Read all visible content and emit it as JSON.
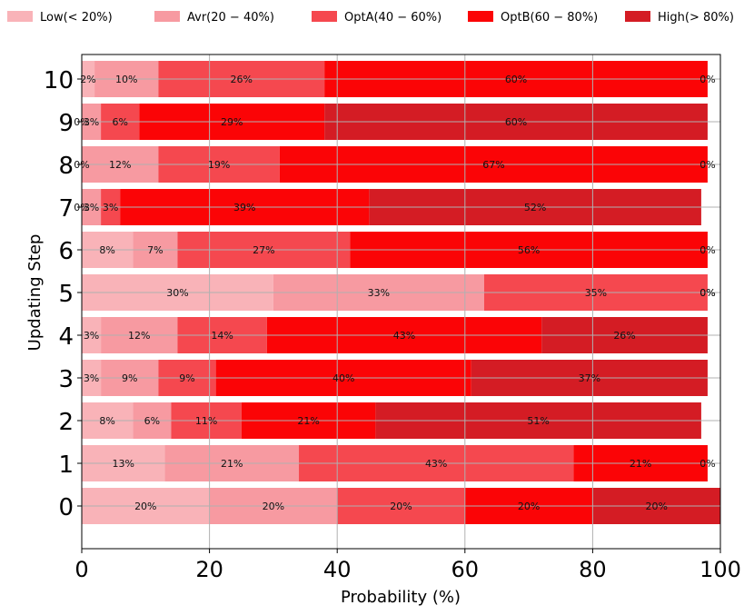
{
  "chart_data": {
    "type": "bar",
    "orientation": "horizontal",
    "stacked": true,
    "title": "",
    "xlabel": "Probability (%)",
    "ylabel": "Updating Step",
    "xlim": [
      0,
      100
    ],
    "xticks": [
      "0",
      "20",
      "40",
      "60",
      "80",
      "100"
    ],
    "grid": true,
    "legend_position": "top",
    "categories": [
      "0",
      "1",
      "2",
      "3",
      "4",
      "5",
      "6",
      "7",
      "8",
      "9",
      "10"
    ],
    "series": [
      {
        "name": "Low(<20%)",
        "legend_label": "Low(< 20%)",
        "color": "#f9b3b8",
        "values": [
          20,
          13,
          8,
          3,
          3,
          30,
          8,
          0,
          0,
          0,
          2
        ],
        "labels": [
          "20%",
          "13%",
          "8%",
          "3%",
          "3%",
          "30%",
          "8%",
          "0%",
          "0%",
          "0%",
          "2%"
        ]
      },
      {
        "name": "Avr(20-40%)",
        "legend_label": "Avr(20 − 40%)",
        "color": "#f79aa1",
        "values": [
          20,
          21,
          6,
          9,
          12,
          33,
          7,
          3,
          12,
          3,
          10
        ],
        "labels": [
          "20%",
          "21%",
          "6%",
          "9%",
          "12%",
          "33%",
          "7%",
          "3%",
          "12%",
          "3%",
          "10%"
        ]
      },
      {
        "name": "OptA(40-60%)",
        "legend_label": "OptA(40 − 60%)",
        "color": "#f5484f",
        "values": [
          20,
          43,
          11,
          9,
          14,
          35,
          27,
          3,
          19,
          6,
          26
        ],
        "labels": [
          "20%",
          "43%",
          "11%",
          "9%",
          "14%",
          "35%",
          "27%",
          "3%",
          "19%",
          "6%",
          "26%"
        ]
      },
      {
        "name": "OptB(60-80%)",
        "legend_label": "OptB(60 − 80%)",
        "color": "#fb0406",
        "values": [
          20,
          21,
          21,
          40,
          43,
          0,
          56,
          39,
          67,
          29,
          60
        ],
        "labels": [
          "20%",
          "21%",
          "21%",
          "40%",
          "43%",
          "0%",
          "56%",
          "39%",
          "67%",
          "29%",
          "60%"
        ]
      },
      {
        "name": "High(>80%)",
        "legend_label": "High(> 80%)",
        "color": "#d41c24",
        "values": [
          20,
          0,
          51,
          37,
          26,
          0,
          0,
          52,
          0,
          60,
          0
        ],
        "labels": [
          "20%",
          "0%",
          "51%",
          "37%",
          "26%",
          "0%",
          "0%",
          "52%",
          "0%",
          "60%",
          "0%"
        ]
      }
    ]
  }
}
